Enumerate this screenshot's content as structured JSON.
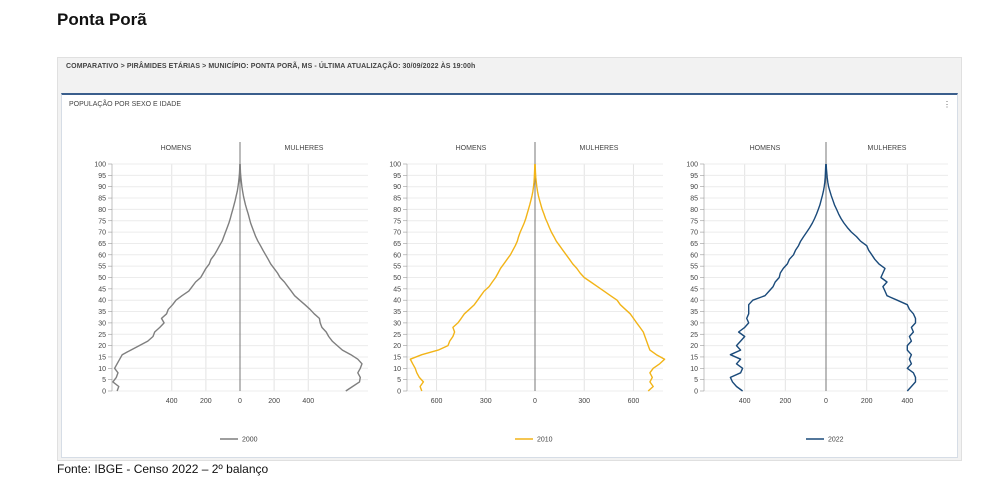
{
  "page_title": "Ponta Porã",
  "breadcrumb": "COMPARATIVO > PIRÂMIDES ETÁRIAS > MUNICÍPIO: PONTA PORÃ, MS - ÚLTIMA ATUALIZAÇÃO: 30/09/2022 ÀS 19:00h",
  "card_title": "POPULAÇÃO POR SEXO E IDADE",
  "menu_icon": "vertical-ellipsis-icon",
  "footer": "Fonte: IBGE - Censo 2022 – 2º balanço",
  "chart_data": [
    {
      "type": "line",
      "series_name": "2000",
      "color": "#7f7f7f",
      "left_label": "HOMENS",
      "right_label": "MULHERES",
      "y_ticks": [
        0,
        5,
        10,
        15,
        20,
        25,
        30,
        35,
        40,
        45,
        50,
        55,
        60,
        65,
        70,
        75,
        80,
        85,
        90,
        95,
        100
      ],
      "ylim": [
        0,
        100
      ],
      "xlim": [
        -750,
        750
      ],
      "x_ticks": [
        -400,
        -200,
        0,
        200,
        400
      ],
      "x_tick_labels": [
        "400",
        "200",
        "0",
        "200",
        "400"
      ],
      "ages": [
        0,
        2,
        4,
        6,
        8,
        10,
        12,
        14,
        16,
        18,
        20,
        22,
        24,
        26,
        28,
        30,
        32,
        34,
        36,
        38,
        40,
        42,
        44,
        46,
        48,
        50,
        52,
        54,
        56,
        58,
        60,
        62,
        64,
        66,
        68,
        70,
        72,
        74,
        76,
        78,
        80,
        82,
        84,
        86,
        88,
        90,
        92,
        94,
        96,
        98,
        100
      ],
      "men": [
        -720,
        -710,
        -745,
        -725,
        -715,
        -735,
        -720,
        -705,
        -690,
        -640,
        -590,
        -540,
        -510,
        -500,
        -470,
        -445,
        -460,
        -430,
        -420,
        -395,
        -375,
        -340,
        -300,
        -280,
        -260,
        -230,
        -215,
        -200,
        -180,
        -170,
        -150,
        -135,
        -120,
        -105,
        -95,
        -85,
        -75,
        -65,
        -57,
        -50,
        -42,
        -35,
        -28,
        -22,
        -16,
        -12,
        -8,
        -5,
        -3,
        -2,
        -1
      ],
      "women": [
        620,
        660,
        700,
        705,
        690,
        705,
        715,
        690,
        650,
        600,
        570,
        540,
        520,
        505,
        480,
        470,
        465,
        435,
        410,
        380,
        350,
        320,
        300,
        280,
        260,
        235,
        220,
        200,
        180,
        165,
        150,
        135,
        120,
        105,
        92,
        82,
        72,
        62,
        55,
        48,
        40,
        32,
        26,
        20,
        15,
        11,
        8,
        5,
        3,
        2,
        1
      ]
    },
    {
      "type": "line",
      "series_name": "2010",
      "color": "#f2b418",
      "left_label": "HOMENS",
      "right_label": "MULHERES",
      "y_ticks": [
        0,
        5,
        10,
        15,
        20,
        25,
        30,
        35,
        40,
        45,
        50,
        55,
        60,
        65,
        70,
        75,
        80,
        85,
        90,
        95,
        100
      ],
      "ylim": [
        0,
        100
      ],
      "xlim": [
        -780,
        780
      ],
      "x_ticks": [
        -600,
        -300,
        0,
        300,
        600
      ],
      "x_tick_labels": [
        "600",
        "300",
        "0",
        "300",
        "600"
      ],
      "ages": [
        0,
        2,
        4,
        6,
        8,
        10,
        12,
        14,
        16,
        18,
        20,
        22,
        24,
        26,
        28,
        30,
        32,
        34,
        36,
        38,
        40,
        42,
        44,
        46,
        48,
        50,
        52,
        54,
        56,
        58,
        60,
        62,
        64,
        66,
        68,
        70,
        72,
        74,
        76,
        78,
        80,
        82,
        84,
        86,
        88,
        90,
        92,
        94,
        96,
        98,
        100
      ],
      "men": [
        -690,
        -700,
        -680,
        -705,
        -720,
        -730,
        -745,
        -760,
        -690,
        -590,
        -530,
        -520,
        -500,
        -490,
        -500,
        -470,
        -450,
        -430,
        -400,
        -370,
        -350,
        -330,
        -310,
        -280,
        -260,
        -240,
        -225,
        -210,
        -190,
        -170,
        -150,
        -135,
        -120,
        -108,
        -100,
        -90,
        -78,
        -66,
        -56,
        -48,
        -40,
        -32,
        -25,
        -18,
        -13,
        -9,
        -6,
        -4,
        -3,
        -2,
        -1
      ],
      "women": [
        690,
        720,
        700,
        715,
        700,
        720,
        760,
        790,
        740,
        700,
        690,
        680,
        670,
        660,
        640,
        620,
        600,
        580,
        550,
        520,
        500,
        460,
        420,
        380,
        340,
        300,
        275,
        255,
        230,
        210,
        190,
        170,
        150,
        130,
        115,
        100,
        88,
        76,
        64,
        54,
        44,
        36,
        28,
        21,
        15,
        11,
        8,
        5,
        3,
        2,
        1
      ]
    },
    {
      "type": "line",
      "series_name": "2022",
      "color": "#1a4a7a",
      "left_label": "HOMENS",
      "right_label": "MULHERES",
      "y_ticks": [
        0,
        5,
        10,
        15,
        20,
        25,
        30,
        35,
        40,
        45,
        50,
        55,
        60,
        65,
        70,
        75,
        80,
        85,
        90,
        95,
        100
      ],
      "ylim": [
        0,
        100
      ],
      "xlim": [
        -600,
        600
      ],
      "x_ticks": [
        -400,
        -200,
        0,
        200,
        400
      ],
      "x_tick_labels": [
        "400",
        "200",
        "0",
        "200",
        "400"
      ],
      "ages": [
        0,
        2,
        4,
        6,
        8,
        10,
        12,
        14,
        16,
        18,
        20,
        22,
        24,
        26,
        28,
        30,
        32,
        34,
        36,
        38,
        40,
        42,
        44,
        46,
        48,
        50,
        52,
        54,
        56,
        58,
        60,
        62,
        64,
        66,
        68,
        70,
        72,
        74,
        76,
        78,
        80,
        82,
        84,
        86,
        88,
        90,
        92,
        94,
        96,
        98,
        100
      ],
      "men": [
        -410,
        -440,
        -460,
        -470,
        -420,
        -410,
        -440,
        -420,
        -470,
        -420,
        -440,
        -420,
        -400,
        -430,
        -400,
        -380,
        -390,
        -380,
        -380,
        -380,
        -360,
        -300,
        -280,
        -260,
        -250,
        -230,
        -225,
        -210,
        -190,
        -180,
        -160,
        -150,
        -135,
        -125,
        -110,
        -95,
        -80,
        -67,
        -56,
        -46,
        -38,
        -30,
        -24,
        -18,
        -13,
        -9,
        -6,
        -4,
        -3,
        -2,
        -1
      ],
      "women": [
        400,
        420,
        440,
        440,
        430,
        400,
        420,
        410,
        420,
        400,
        400,
        420,
        410,
        430,
        420,
        440,
        440,
        430,
        410,
        400,
        350,
        300,
        290,
        280,
        300,
        270,
        280,
        290,
        260,
        240,
        225,
        210,
        200,
        170,
        150,
        125,
        105,
        88,
        74,
        62,
        52,
        42,
        34,
        26,
        19,
        13,
        9,
        6,
        4,
        2,
        1
      ]
    }
  ]
}
